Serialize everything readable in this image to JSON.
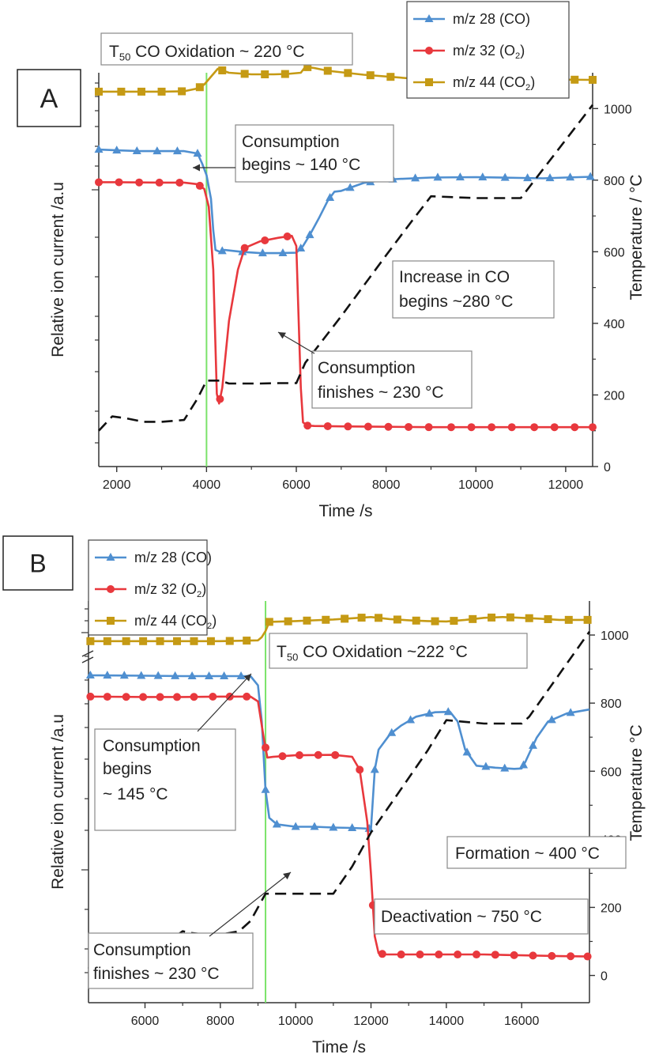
{
  "colors": {
    "co": "#4f8fd0",
    "o2": "#e8383d",
    "co2": "#c59a14",
    "temperature": "#111111",
    "t50_line": "#7be36a",
    "axis": "#333333",
    "text": "#222222"
  },
  "chart_data": [
    {
      "panel_label": "A",
      "type": "line",
      "xlabel": "Time /s",
      "ylabel": "Relative ion current /a.u",
      "y2label": "Temperature / °C",
      "xlim": [
        1600,
        12600
      ],
      "xticks": [
        2000,
        4000,
        6000,
        8000,
        10000,
        12000
      ],
      "ylim": [
        0,
        100
      ],
      "y2lim": [
        0,
        1100
      ],
      "y2ticks": [
        0,
        200,
        400,
        600,
        800,
        1000
      ],
      "legend": {
        "placement": "top-right",
        "entries": [
          {
            "series": "co",
            "pre": "m/z 28 (CO)",
            "sub": "",
            "post": ""
          },
          {
            "series": "o2",
            "pre": "m/z 32 (O",
            "sub": "2",
            "post": ")"
          },
          {
            "series": "co2",
            "pre": "m/z 44 (CO",
            "sub": "2",
            "post": ")"
          }
        ]
      },
      "series": [
        {
          "name": "m/z 28 (CO)",
          "key": "co",
          "x": [
            1600,
            2000,
            2500,
            3000,
            3500,
            3800,
            3900,
            4000,
            4100,
            4150,
            4200,
            4300,
            4400,
            4800,
            5200,
            5600,
            6000,
            6150,
            6300,
            6500,
            6700,
            6850,
            7000,
            7200,
            7500,
            7800,
            8200,
            9000,
            10000,
            11000,
            11500,
            12000,
            12600
          ],
          "y": [
            80.5,
            80.3,
            80.1,
            80.1,
            80.1,
            79.5,
            77,
            74,
            68,
            60,
            55,
            54.5,
            55,
            54.5,
            54.2,
            54.2,
            54.3,
            56,
            58.8,
            63,
            67.5,
            69.8,
            70,
            70.8,
            72,
            72.5,
            73,
            73.4,
            73.5,
            73.3,
            73.2,
            73.4,
            73.6
          ],
          "markers_x": [
            1600,
            2000,
            2450,
            2900,
            3350,
            3800,
            4350,
            4800,
            5250,
            5700,
            6100,
            6300,
            6750,
            7200,
            7650,
            8150,
            8650,
            9150,
            9650,
            10150,
            10650,
            11150,
            11650,
            12100,
            12550
          ]
        },
        {
          "name": "m/z 32 (O2)",
          "key": "o2",
          "x": [
            1600,
            2000,
            3000,
            3500,
            3800,
            3950,
            4050,
            4150,
            4230,
            4280,
            4350,
            4500,
            4700,
            4850,
            5200,
            5600,
            5900,
            6000,
            6100,
            6150,
            6250,
            6400,
            7000,
            8000,
            9000,
            10000,
            11000,
            12000,
            12600
          ],
          "y": [
            72.2,
            72.2,
            72.1,
            72.1,
            71.7,
            70.5,
            66,
            50,
            18.5,
            16,
            20,
            37,
            50,
            55.5,
            57.2,
            58.1,
            58.6,
            56,
            20,
            11.2,
            10.4,
            10.3,
            10.2,
            10.1,
            10,
            10,
            10,
            10,
            10
          ],
          "markers_x": [
            1600,
            2050,
            2500,
            2950,
            3400,
            3850,
            4300,
            4850,
            5300,
            5800,
            6250,
            6700,
            7150,
            7600,
            8050,
            8500,
            8950,
            9450,
            9900,
            10350,
            10800,
            11300,
            11750,
            12200,
            12600
          ]
        },
        {
          "name": "m/z 44 (CO2)",
          "key": "co2",
          "x": [
            1600,
            3000,
            3500,
            3800,
            3950,
            4100,
            4250,
            4500,
            5000,
            5500,
            5800,
            6100,
            6200,
            6400,
            6700,
            7500,
            8500,
            9500,
            10500,
            11500,
            12600
          ],
          "y": [
            95.2,
            95.2,
            95.3,
            96,
            97,
            99,
            101,
            100,
            99.6,
            99.6,
            99.7,
            100,
            101.5,
            101.2,
            100.5,
            99.5,
            98.6,
            98.2,
            98.2,
            98.3,
            98.2
          ],
          "markers_x": [
            1600,
            2100,
            2550,
            3000,
            3450,
            3850,
            4350,
            4850,
            5300,
            5750,
            6250,
            6700,
            7150,
            7650,
            8100,
            8550,
            9000,
            9450,
            9900,
            10350,
            10850,
            11300,
            11750,
            12200,
            12600
          ]
        },
        {
          "name": "Temperature",
          "key": "temperature",
          "axis": "y2",
          "x": [
            1600,
            1900,
            2200,
            2600,
            3000,
            3500,
            3800,
            4000,
            4300,
            4500,
            4800,
            5200,
            5600,
            6000,
            6200,
            7000,
            8000,
            8600,
            9000,
            10000,
            10800,
            11000,
            12600
          ],
          "y": [
            100,
            140,
            135,
            125,
            125,
            130,
            190,
            240,
            240,
            232,
            232,
            232,
            233,
            233,
            290,
            420,
            590,
            690,
            755,
            750,
            750,
            750,
            1010
          ]
        }
      ],
      "vline_x": 4000,
      "annotations": [
        {
          "key": "t50",
          "lines": [
            {
              "pre": "T",
              "sub": "50",
              "post": " CO Oxidation ~ 220 °C"
            }
          ]
        },
        {
          "key": "c_begin",
          "lines": [
            {
              "pre": "Consumption",
              "sub": "",
              "post": ""
            },
            {
              "pre": "begins ~ 140 °C",
              "sub": "",
              "post": ""
            }
          ]
        },
        {
          "key": "inc_co",
          "lines": [
            {
              "pre": "Increase in CO",
              "sub": "",
              "post": ""
            },
            {
              "pre": "begins ~280 °C",
              "sub": "",
              "post": ""
            }
          ]
        },
        {
          "key": "c_fin",
          "lines": [
            {
              "pre": "Consumption",
              "sub": "",
              "post": ""
            },
            {
              "pre": "finishes ~ 230 °C",
              "sub": "",
              "post": ""
            }
          ]
        }
      ]
    },
    {
      "panel_label": "B",
      "type": "line",
      "xlabel": "Time /s",
      "ylabel": "Relative ion current /a.u",
      "y2label": "Temperature °C",
      "xlim": [
        4500,
        17800
      ],
      "xticks": [
        6000,
        8000,
        10000,
        12000,
        14000,
        16000
      ],
      "ylim": [
        0,
        100
      ],
      "y2lim": [
        -80,
        1100
      ],
      "y2ticks": [
        0,
        200,
        400,
        600,
        800,
        1000
      ],
      "legend": {
        "placement": "top-left",
        "entries": [
          {
            "series": "co",
            "pre": "m/z 28 (CO)",
            "sub": "",
            "post": ""
          },
          {
            "series": "o2",
            "pre": "m/z 32 (O",
            "sub": "2",
            "post": ")"
          },
          {
            "series": "co2",
            "pre": "m/z 44 (CO",
            "sub": "2",
            "post": ")"
          }
        ]
      },
      "series": [
        {
          "name": "m/z 28 (CO)",
          "key": "co",
          "x": [
            4500,
            6000,
            7000,
            8000,
            8800,
            9000,
            9100,
            9200,
            9300,
            9500,
            10000,
            10500,
            11000,
            11500,
            12000,
            12100,
            12200,
            12500,
            12800,
            13200,
            13700,
            14100,
            14300,
            14500,
            14800,
            15300,
            15800,
            16000,
            16100,
            16200,
            16400,
            16700,
            17200,
            17800
          ],
          "y": [
            81.5,
            81.4,
            81.3,
            81.3,
            81.3,
            79,
            70,
            53,
            46,
            44.4,
            43.8,
            43.8,
            43.6,
            43.5,
            43.3,
            58,
            63,
            66.8,
            69,
            71.2,
            72.3,
            72.4,
            70,
            63,
            59,
            58.5,
            58.2,
            58.3,
            60,
            62,
            66,
            70,
            72,
            73
          ],
          "markers_x": [
            4550,
            5000,
            5450,
            5900,
            6350,
            6800,
            7250,
            7700,
            8100,
            8550,
            9200,
            9500,
            10000,
            10500,
            11000,
            11500,
            11950,
            12100,
            12550,
            13050,
            13550,
            14050,
            14550,
            15050,
            15550,
            16050,
            16300,
            16800,
            17300
          ]
        },
        {
          "name": "m/z 32 (O2)",
          "key": "o2",
          "x": [
            4500,
            6000,
            7000,
            8000,
            8800,
            9000,
            9150,
            9250,
            9400,
            10000,
            11000,
            11500,
            11700,
            11900,
            12000,
            12100,
            12200,
            12400,
            13000,
            14000,
            15000,
            16000,
            17000,
            17800
          ],
          "y": [
            76.2,
            76.1,
            76.1,
            76.2,
            76.2,
            75,
            66,
            61,
            61.2,
            61.6,
            61.7,
            61.2,
            58,
            45,
            32,
            16.5,
            12.3,
            12,
            12,
            12,
            12,
            11.8,
            11.6,
            11.5
          ],
          "markers_x": [
            4550,
            5000,
            5500,
            5950,
            6400,
            6850,
            7300,
            7800,
            8250,
            8700,
            9200,
            9650,
            10100,
            10600,
            11050,
            11700,
            12050,
            12300,
            12800,
            13300,
            13800,
            14300,
            14800,
            15300,
            15800,
            16300,
            16800,
            17300,
            17750
          ]
        },
        {
          "name": "m/z 44 (CO2)",
          "key": "co2",
          "x": [
            4500,
            6000,
            8000,
            9000,
            9100,
            9200,
            9300,
            10000,
            11000,
            12000,
            12500,
            13000,
            13500,
            14000,
            14500,
            15000,
            15500,
            16000,
            16500,
            17000,
            17800
          ],
          "y": [
            90,
            90,
            90,
            90.2,
            91,
            92.5,
            94.8,
            95,
            95.4,
            96,
            95.5,
            95.2,
            95,
            94.9,
            95.3,
            95.8,
            96,
            95.8,
            95.6,
            95.3,
            95.3
          ],
          "markers_x": [
            4550,
            5000,
            5500,
            5950,
            6400,
            6850,
            7300,
            7750,
            8250,
            8700,
            9300,
            9800,
            10300,
            10800,
            11300,
            11750,
            12200,
            12700,
            13200,
            13700,
            14200,
            14700,
            15200,
            15700,
            16200,
            16700,
            17250,
            17750
          ]
        },
        {
          "name": "Temperature",
          "key": "temperature",
          "axis": "y2",
          "x": [
            4500,
            5000,
            5500,
            6000,
            6500,
            7000,
            7200,
            7600,
            8000,
            8500,
            8800,
            9200,
            10000,
            11000,
            11500,
            12000,
            12500,
            13000,
            13500,
            14000,
            15000,
            16000,
            16200,
            17800
          ],
          "y": [
            20,
            100,
            95,
            90,
            90,
            130,
            125,
            120,
            120,
            130,
            160,
            240,
            240,
            240,
            320,
            420,
            500,
            580,
            660,
            750,
            740,
            740,
            760,
            1010
          ]
        }
      ],
      "vline_x": 9200,
      "annotations": [
        {
          "key": "t50",
          "lines": [
            {
              "pre": "T",
              "sub": "50",
              "post": " CO Oxidation ~222 °C"
            }
          ]
        },
        {
          "key": "c_begin",
          "lines": [
            {
              "pre": "Consumption",
              "sub": "",
              "post": ""
            },
            {
              "pre": "begins",
              "sub": "",
              "post": ""
            },
            {
              "pre": " ~ 145 °C",
              "sub": "",
              "post": ""
            }
          ]
        },
        {
          "key": "c_fin",
          "lines": [
            {
              "pre": "Consumption",
              "sub": "",
              "post": ""
            },
            {
              "pre": "finishes ~ 230 °C",
              "sub": "",
              "post": ""
            }
          ]
        },
        {
          "key": "formation",
          "lines": [
            {
              "pre": "Formation ~ 400 °C",
              "sub": "",
              "post": ""
            }
          ]
        },
        {
          "key": "deactivation",
          "lines": [
            {
              "pre": "Deactivation ~ 750 °C",
              "sub": "",
              "post": ""
            }
          ]
        }
      ]
    }
  ]
}
